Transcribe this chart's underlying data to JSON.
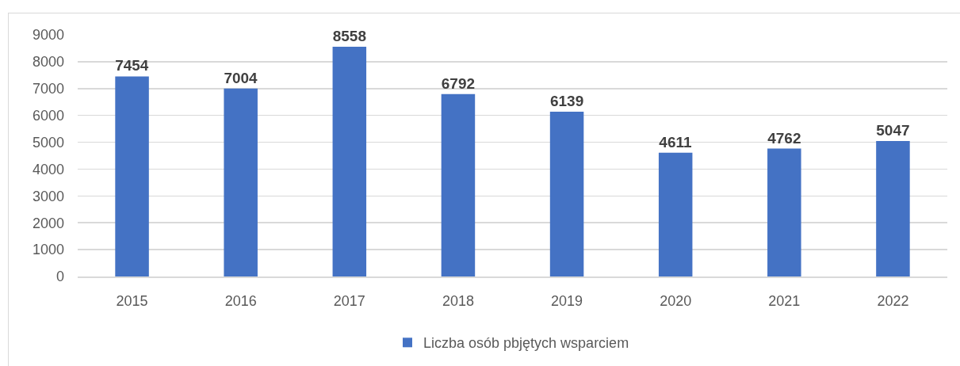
{
  "chart_data": {
    "type": "bar",
    "categories": [
      "2015",
      "2016",
      "2017",
      "2018",
      "2019",
      "2020",
      "2021",
      "2022"
    ],
    "series": [
      {
        "name": "Liczba osób pbjętych wsparciem",
        "color": "#4472c4",
        "values": [
          7454,
          7004,
          8558,
          6792,
          6139,
          4611,
          4762,
          5047
        ]
      }
    ],
    "ylim": [
      0,
      9000
    ],
    "yticks": [
      0,
      1000,
      2000,
      3000,
      4000,
      5000,
      6000,
      7000,
      8000,
      9000
    ],
    "grid": "y",
    "legend": "bottom",
    "data_labels": true
  }
}
